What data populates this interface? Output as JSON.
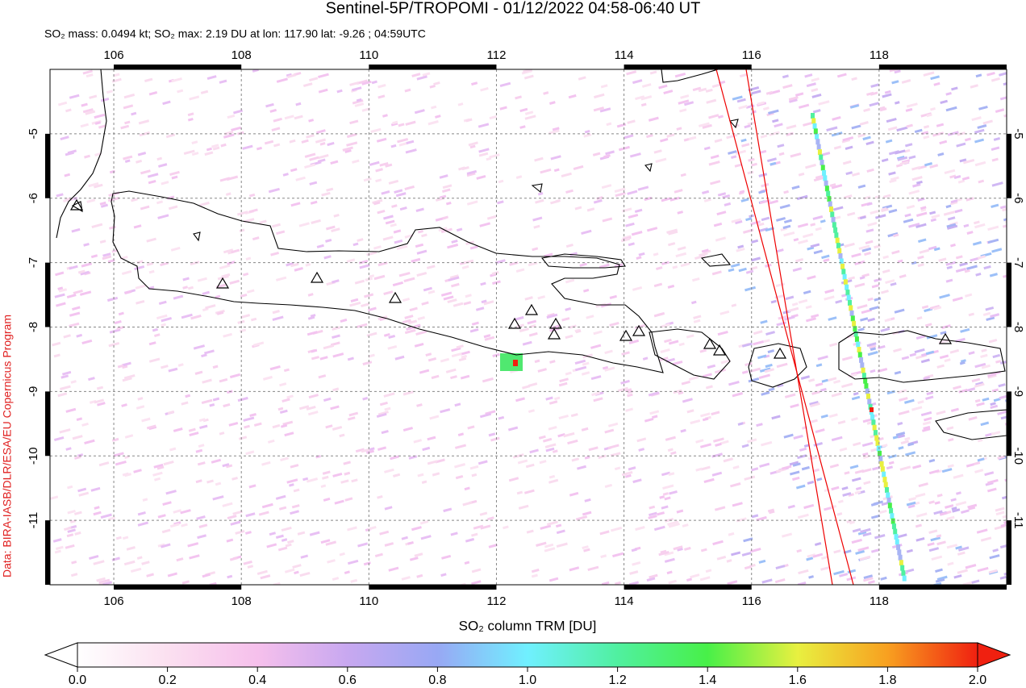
{
  "title": "Sentinel-5P/TROPOMI - 01/12/2022 04:58-06:40 UT",
  "subtitle": "SO₂ mass: 0.0494 kt; SO₂ max: 2.19 DU at lon: 117.90 lat: -9.26 ; 04:59UTC",
  "credit": "Data: BIRA-IASB/DLR/ESA/EU Copernicus Program",
  "map": {
    "xlim": [
      105,
      120
    ],
    "ylim": [
      -12,
      -4
    ],
    "xticks": [
      106,
      108,
      110,
      112,
      114,
      116,
      118
    ],
    "yticks": [
      -5,
      -6,
      -7,
      -8,
      -9,
      -10,
      -11
    ],
    "grid": true
  },
  "colorbar": {
    "label": "SO₂ column TRM [DU]",
    "lim": [
      0,
      2
    ],
    "ticks": [
      {
        "value": 0,
        "label": "0.0"
      },
      {
        "value": 0.2,
        "label": "0.2"
      },
      {
        "value": 0.4,
        "label": "0.4"
      },
      {
        "value": 0.6,
        "label": "0.6"
      },
      {
        "value": 0.8,
        "label": "0.8"
      },
      {
        "value": 1,
        "label": "1.0"
      },
      {
        "value": 1.2,
        "label": "1.2"
      },
      {
        "value": 1.4,
        "label": "1.4"
      },
      {
        "value": 1.6,
        "label": "1.6"
      },
      {
        "value": 1.8,
        "label": "1.8"
      },
      {
        "value": 2,
        "label": "2.0"
      }
    ]
  }
}
